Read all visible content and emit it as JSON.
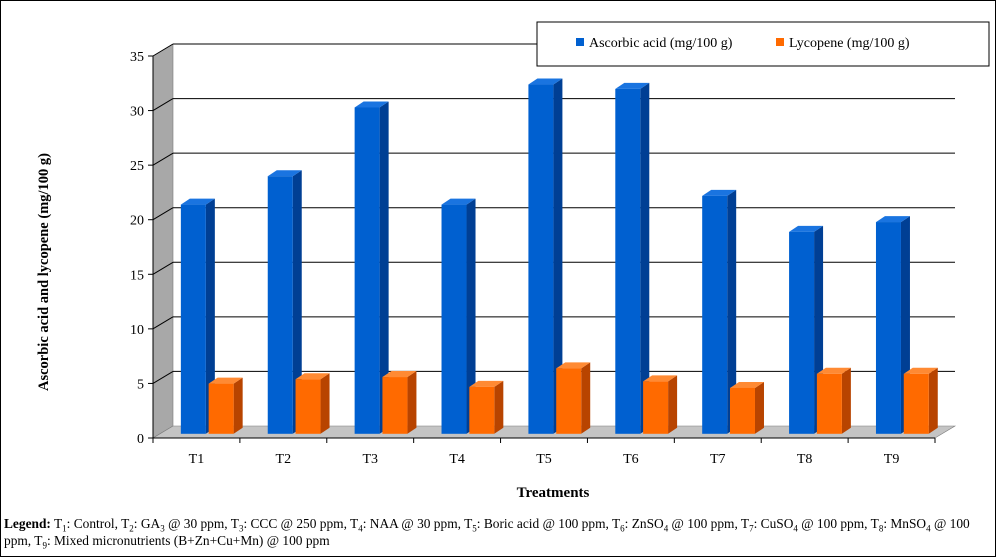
{
  "chart_data": {
    "type": "bar",
    "categories": [
      "T1",
      "T2",
      "T3",
      "T4",
      "T5",
      "T6",
      "T7",
      "T8",
      "T9"
    ],
    "series": [
      {
        "name": "Ascorbic acid (mg/100 g)",
        "values": [
          21.0,
          23.6,
          29.9,
          21.0,
          32.0,
          31.6,
          21.8,
          18.5,
          19.4
        ]
      },
      {
        "name": "Lycopene (mg/100 g)",
        "values": [
          4.6,
          5.0,
          5.2,
          4.3,
          6.0,
          4.8,
          4.2,
          5.5,
          5.5
        ]
      }
    ],
    "xlabel": "Treatments",
    "ylabel": "Ascorbic acid and lycopene (mg/100 g)",
    "ylim": [
      0,
      35
    ],
    "yticks": [
      0,
      5,
      10,
      15,
      20,
      25,
      30,
      35
    ],
    "grid": true,
    "legend_position": "top-right",
    "colors": {
      "series": [
        "#0060d0",
        "#ff6a00"
      ],
      "series_side": [
        "#003f94",
        "#b84400"
      ],
      "series_top": [
        "#1a74e0",
        "#ff8a33"
      ],
      "wall": "#a8a8a8",
      "floor": "#c4c4c4"
    }
  },
  "footnote": {
    "label": "Legend:",
    "segments": [
      {
        "t": " T"
      },
      {
        "sub": "1"
      },
      {
        "t": ": Control, T"
      },
      {
        "sub": "2"
      },
      {
        "t": ": GA"
      },
      {
        "sub": "3"
      },
      {
        "t": " @ 30 ppm, T"
      },
      {
        "sub": "3"
      },
      {
        "t": ": CCC @ 250 ppm, T"
      },
      {
        "sub": "4"
      },
      {
        "t": ": NAA @ 30 ppm, T"
      },
      {
        "sub": "5"
      },
      {
        "t": ": Boric acid @ 100 ppm, T"
      },
      {
        "sub": "6"
      },
      {
        "t": ": ZnSO"
      },
      {
        "sub": "4"
      },
      {
        "t": " @ 100 ppm, T"
      },
      {
        "sub": "7"
      },
      {
        "t": ": CuSO"
      },
      {
        "sub": "4"
      },
      {
        "t": " @ 100 ppm, T"
      },
      {
        "sub": "8"
      },
      {
        "t": ": MnSO"
      },
      {
        "sub": "4"
      },
      {
        "t": " @ 100 ppm, T"
      },
      {
        "sub": "9"
      },
      {
        "t": ": Mixed micronutrients (B+Zn+Cu+Mn) @ 100 ppm"
      }
    ]
  }
}
